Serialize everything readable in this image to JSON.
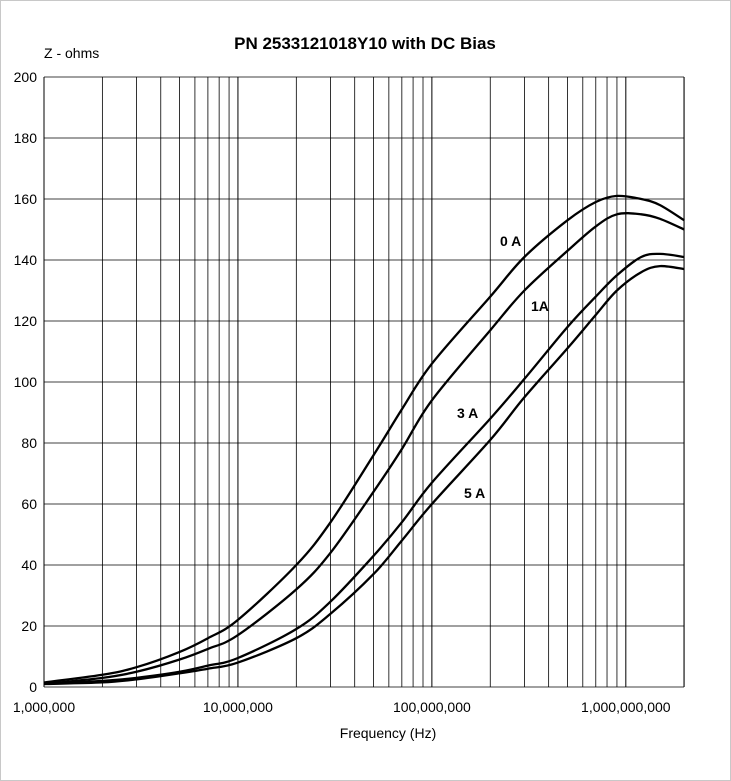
{
  "chart_data": {
    "type": "line",
    "title": "PN 2533121018Y10 with DC Bias",
    "ylabel": "Z - ohms",
    "xlabel": "Frequency (Hz)",
    "x_scale": "log",
    "xlim": [
      1000000,
      2000000000
    ],
    "ylim": [
      0,
      200
    ],
    "grid": true,
    "x_tick_labels": [
      "1,000,000",
      "10,000,000",
      "100,000,000",
      "1,000,000,000"
    ],
    "x_tick_values": [
      1000000,
      10000000,
      100000000,
      1000000000
    ],
    "y_ticks": [
      0,
      20,
      40,
      60,
      80,
      100,
      120,
      140,
      160,
      180,
      200
    ],
    "series": [
      {
        "name": "0 A",
        "x": [
          1000000,
          2000000,
          3000000,
          5000000,
          7000000,
          10000000,
          20000000,
          30000000,
          50000000,
          70000000,
          100000000,
          200000000,
          300000000,
          500000000,
          700000000,
          900000000,
          1200000000,
          1500000000,
          2000000000
        ],
        "values": [
          1.5,
          4,
          6.5,
          11.5,
          16,
          22,
          40,
          54,
          76,
          91,
          106,
          128,
          141,
          153,
          159,
          161,
          160,
          158,
          153
        ]
      },
      {
        "name": "1A",
        "x": [
          1000000,
          2000000,
          3000000,
          5000000,
          7000000,
          10000000,
          20000000,
          30000000,
          50000000,
          70000000,
          100000000,
          200000000,
          300000000,
          500000000,
          700000000,
          900000000,
          1200000000,
          1500000000,
          2000000000
        ],
        "values": [
          1,
          3,
          5,
          9,
          12.5,
          17,
          32,
          44,
          64,
          78,
          94,
          117,
          130,
          143,
          151,
          155,
          155,
          153.5,
          150
        ]
      },
      {
        "name": "3 A",
        "x": [
          1000000,
          2000000,
          3000000,
          5000000,
          7000000,
          10000000,
          20000000,
          30000000,
          50000000,
          70000000,
          100000000,
          200000000,
          300000000,
          500000000,
          700000000,
          900000000,
          1200000000,
          1500000000,
          2000000000
        ],
        "values": [
          1,
          2,
          3,
          5,
          7,
          9.5,
          19,
          28,
          43,
          54,
          67,
          88,
          101,
          118,
          128,
          135,
          141,
          142,
          141
        ]
      },
      {
        "name": "5 A",
        "x": [
          1000000,
          2000000,
          3000000,
          5000000,
          7000000,
          10000000,
          20000000,
          30000000,
          50000000,
          70000000,
          100000000,
          200000000,
          300000000,
          500000000,
          700000000,
          900000000,
          1200000000,
          1500000000,
          2000000000
        ],
        "values": [
          1,
          1.5,
          2.5,
          4.5,
          6,
          8,
          16,
          24,
          37,
          48,
          60,
          81,
          95,
          111,
          122,
          130,
          136,
          138,
          137
        ]
      }
    ]
  }
}
